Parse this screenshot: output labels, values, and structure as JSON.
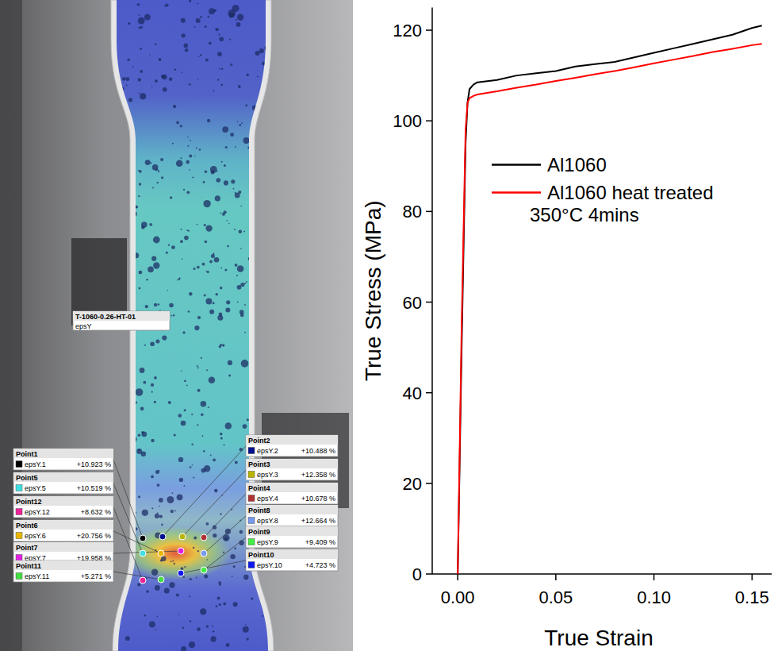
{
  "chart_data": {
    "type": "line",
    "xlabel": "True Strain",
    "ylabel": "True Stress (MPa)",
    "x": [
      0,
      0.002,
      0.004,
      0.005,
      0.006,
      0.008,
      0.01,
      0.02,
      0.03,
      0.04,
      0.05,
      0.06,
      0.07,
      0.08,
      0.09,
      0.1,
      0.11,
      0.12,
      0.13,
      0.14,
      0.15,
      0.155
    ],
    "series": [
      {
        "name": "Al1060",
        "color": "#000000",
        "values": [
          0,
          50,
          95,
          104,
          107,
          108,
          108.5,
          109,
          110,
          110.5,
          111,
          112,
          112.5,
          113,
          114,
          115,
          116,
          117,
          118,
          119,
          120.5,
          121
        ]
      },
      {
        "name": "Al1060 heat treated\n350°C 4mins",
        "color": "#ff0000",
        "values": [
          0,
          55,
          98,
          104,
          105,
          105.5,
          105.8,
          106.5,
          107.3,
          108,
          108.8,
          109.5,
          110.3,
          111,
          111.8,
          112.7,
          113.5,
          114.3,
          115.2,
          115.9,
          116.7,
          117
        ]
      }
    ],
    "xlim": [
      -0.013,
      0.16
    ],
    "ylim": [
      0,
      125
    ],
    "xticks": [
      {
        "value": 0,
        "label": "0.00"
      },
      {
        "value": 0.05,
        "label": "0.05"
      },
      {
        "value": 0.1,
        "label": "0.10"
      },
      {
        "value": 0.15,
        "label": "0.15"
      }
    ],
    "yticks": [
      0,
      20,
      40,
      60,
      80,
      100,
      120
    ],
    "grid": false,
    "legend": "upper left"
  },
  "specimen": {
    "name": "T-1060-0.26-HT-01",
    "field": "epsY",
    "points": [
      {
        "name": "Point1",
        "probe": "epsY.1",
        "value": "+10.923 %",
        "color": "#000000"
      },
      {
        "name": "Point2",
        "probe": "epsY.2",
        "value": "+10.488 %",
        "color": "#00108c"
      },
      {
        "name": "Point3",
        "probe": "epsY.3",
        "value": "+12.358 %",
        "color": "#b8b400"
      },
      {
        "name": "Point4",
        "probe": "epsY.4",
        "value": "+10.678 %",
        "color": "#b03232"
      },
      {
        "name": "Point5",
        "probe": "epsY.5",
        "value": "+10.519 %",
        "color": "#3ee0e0"
      },
      {
        "name": "Point6",
        "probe": "epsY.6",
        "value": "+20.756 %",
        "color": "#e8b800"
      },
      {
        "name": "Point7",
        "probe": "epsY.7",
        "value": "+19.958 %",
        "color": "#e020e0"
      },
      {
        "name": "Point8",
        "probe": "epsY.8",
        "value": "+12.664 %",
        "color": "#7799ee"
      },
      {
        "name": "Point9",
        "probe": "epsY.9",
        "value": "+9.409 %",
        "color": "#44ee44"
      },
      {
        "name": "Point10",
        "probe": "epsY.10",
        "value": "+4.723 %",
        "color": "#1018ee"
      },
      {
        "name": "Point11",
        "probe": "epsY.11",
        "value": "+5.271 %",
        "color": "#44dd44"
      },
      {
        "name": "Point12",
        "probe": "epsY.12",
        "value": "+8.632 %",
        "color": "#ee2299"
      }
    ]
  }
}
